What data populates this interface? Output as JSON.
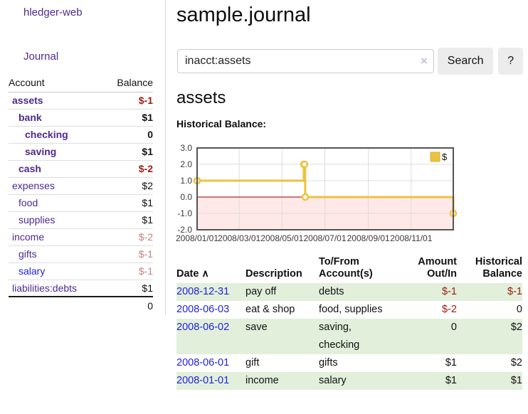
{
  "app": {
    "brand": "hledger-web",
    "nav_journal": "Journal"
  },
  "colors": {
    "link_purple": "#4e2a8e",
    "link_blue": "#2222dd",
    "negative_red": "#9a1b10",
    "negative_light_red": "#c4837d",
    "row_stripe_green": "#e2efdb",
    "series_gold": "#edc240"
  },
  "sidebar": {
    "table": {
      "col_account": "Account",
      "col_balance": "Balance",
      "rows": [
        {
          "name": "assets",
          "balance": "$-1",
          "indent": 0,
          "bold": true,
          "value_style": "neg"
        },
        {
          "name": "bank",
          "balance": "$1",
          "indent": 1,
          "bold": true,
          "value_style": "pos"
        },
        {
          "name": "checking",
          "balance": "0",
          "indent": 2,
          "bold": true,
          "value_style": "pos"
        },
        {
          "name": "saving",
          "balance": "$1",
          "indent": 2,
          "bold": true,
          "value_style": "pos"
        },
        {
          "name": "cash",
          "balance": "$-2",
          "indent": 1,
          "bold": true,
          "value_style": "neg"
        },
        {
          "name": "expenses",
          "balance": "$2",
          "indent": 0,
          "bold": false,
          "value_style": "pos"
        },
        {
          "name": "food",
          "balance": "$1",
          "indent": 1,
          "bold": false,
          "value_style": "pos"
        },
        {
          "name": "supplies",
          "balance": "$1",
          "indent": 1,
          "bold": false,
          "value_style": "pos"
        },
        {
          "name": "income",
          "balance": "$-2",
          "indent": 0,
          "bold": false,
          "value_style": "neglight"
        },
        {
          "name": "gifts",
          "balance": "$-1",
          "indent": 1,
          "bold": false,
          "value_style": "neglight"
        },
        {
          "name": "salary",
          "balance": "$-1",
          "indent": 1,
          "bold": false,
          "value_style": "neglight",
          "link_style": "blue"
        },
        {
          "name": "liabilities:debts",
          "balance": "$1",
          "indent": 0,
          "bold": false,
          "value_style": "pos"
        }
      ],
      "total": "0"
    }
  },
  "main": {
    "title": "sample.journal",
    "search": {
      "value": "inacct:assets",
      "clear_icon": "×",
      "search_label": "Search",
      "help_label": "?"
    },
    "account_heading": "assets",
    "chart_heading": "Historical Balance:"
  },
  "chart_data": {
    "type": "line",
    "title": "Historical Balance",
    "step": "post",
    "series": [
      {
        "name": "$",
        "color": "#edc240",
        "marker_fill": "#ffffff",
        "points": [
          {
            "date": "2008-01-01",
            "day": 0,
            "value": 1
          },
          {
            "date": "2008-06-01",
            "day": 152,
            "value": 2
          },
          {
            "date": "2008-06-02",
            "day": 153,
            "value": 2
          },
          {
            "date": "2008-06-03",
            "day": 154,
            "value": 0
          },
          {
            "date": "2008-12-31",
            "day": 365,
            "value": -1
          }
        ]
      }
    ],
    "ylim": [
      -2,
      3
    ],
    "xlim_days": [
      0,
      365
    ],
    "y_ticks": [
      {
        "label": "3.0",
        "value": 3
      },
      {
        "label": "2.0",
        "value": 2
      },
      {
        "label": "1.0",
        "value": 1
      },
      {
        "label": "0.0",
        "value": 0
      },
      {
        "label": "-1.0",
        "value": -1
      },
      {
        "label": "-2.0",
        "value": -2
      }
    ],
    "x_ticks": [
      {
        "label": "2008/01/01",
        "day": 0
      },
      {
        "label": "2008/03/01",
        "day": 60
      },
      {
        "label": "2008/05/01",
        "day": 121
      },
      {
        "label": "2008/07/01",
        "day": 182
      },
      {
        "label": "2008/09/01",
        "day": 244
      },
      {
        "label": "2008/11/01",
        "day": 305
      }
    ],
    "legend": {
      "label": "$",
      "position": "top-right"
    },
    "grid": true,
    "colors": {
      "zero_line": "#8b0000",
      "negative_region": "rgba(255,0,0,0.09)",
      "grid": "#dcdcdc",
      "border": "#545454"
    }
  },
  "register": {
    "headers": {
      "date": "Date",
      "sort_icon": "∧",
      "description": "Description",
      "tofrom": "To/From Account(s)",
      "amount": "Amount Out/In",
      "balance": "Historical Balance"
    },
    "rows": [
      {
        "date": "2008-12-31",
        "description": "pay off",
        "accounts": "debts",
        "amount": "$-1",
        "amount_neg": true,
        "balance": "$-1",
        "balance_neg": true,
        "shaded": true
      },
      {
        "date": "2008-06-03",
        "description": "eat & shop",
        "accounts": "food, supplies",
        "amount": "$-2",
        "amount_neg": true,
        "balance": "0",
        "balance_neg": false,
        "shaded": false
      },
      {
        "date": "2008-06-02",
        "description": "save",
        "accounts": "saving, checking",
        "amount": "0",
        "amount_neg": false,
        "balance": "$2",
        "balance_neg": false,
        "shaded": true
      },
      {
        "date": "2008-06-01",
        "description": "gift",
        "accounts": "gifts",
        "amount": "$1",
        "amount_neg": false,
        "balance": "$2",
        "balance_neg": false,
        "shaded": false
      },
      {
        "date": "2008-01-01",
        "description": "income",
        "accounts": "salary",
        "amount": "$1",
        "amount_neg": false,
        "balance": "$1",
        "balance_neg": false,
        "shaded": true
      }
    ]
  }
}
